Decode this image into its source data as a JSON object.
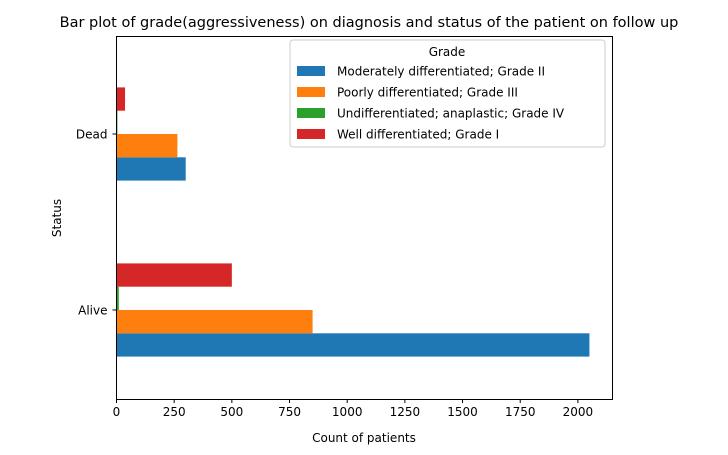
{
  "chart_data": {
    "type": "bar",
    "orientation": "horizontal",
    "title": "Bar plot of grade(aggressiveness) on diagnosis and status of the patient on follow up",
    "xlabel": "Count of patients",
    "ylabel": "Status",
    "categories": [
      "Alive",
      "Dead"
    ],
    "xlim": [
      0,
      2150
    ],
    "xticks": [
      0,
      250,
      500,
      750,
      1000,
      1250,
      1500,
      1750,
      2000
    ],
    "legend_title": "Grade",
    "legend_position": "top-right",
    "grid": false,
    "series": [
      {
        "name": "Moderately differentiated; Grade II",
        "color": "#1f77b4",
        "values": [
          2050,
          300
        ]
      },
      {
        "name": "Poorly differentiated; Grade III",
        "color": "#ff7f0e",
        "values": [
          850,
          264
        ]
      },
      {
        "name": "Undifferentiated; anaplastic; Grade IV",
        "color": "#2ca02c",
        "values": [
          10,
          4
        ]
      },
      {
        "name": "Well differentiated; Grade I",
        "color": "#d62728",
        "values": [
          500,
          37
        ]
      }
    ]
  }
}
